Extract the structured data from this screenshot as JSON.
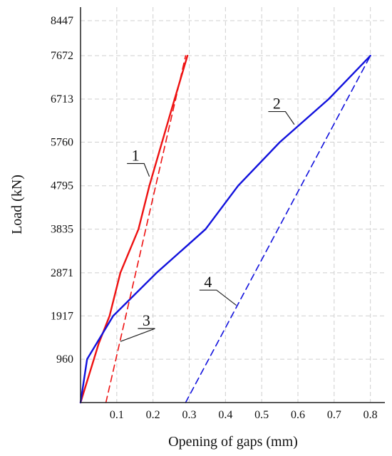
{
  "chart_data": {
    "type": "line",
    "title": "",
    "xlabel": "Opening of gaps (mm)",
    "ylabel": "Load (kN)",
    "xlim": [
      0,
      0.84
    ],
    "ylim": [
      0,
      8447
    ],
    "x_ticks": [
      0.1,
      0.2,
      0.3,
      0.4,
      0.5,
      0.6,
      0.7,
      0.8
    ],
    "x_tick_labels": [
      "0.1",
      "0.2",
      "0.3",
      "0.4",
      "0.5",
      "0.6",
      "0.7",
      "0.8"
    ],
    "y_ticks": [
      960,
      1917,
      2871,
      3835,
      4795,
      5760,
      6713,
      7672,
      8447
    ],
    "y_tick_labels": [
      "960",
      "1917",
      "2871",
      "3835",
      "4795",
      "5760",
      "6713",
      "7672",
      "8447"
    ],
    "grid": true,
    "legend": "none",
    "series": [
      {
        "label": "1",
        "color": "#ee1111",
        "dashed": false,
        "points": [
          [
            0,
            0
          ],
          [
            0.05,
            1300
          ],
          [
            0.08,
            1917
          ],
          [
            0.11,
            2871
          ],
          [
            0.16,
            3835
          ],
          [
            0.19,
            4795
          ],
          [
            0.25,
            6450
          ],
          [
            0.295,
            7672
          ]
        ]
      },
      {
        "label": "2",
        "color": "#1111dd",
        "dashed": false,
        "points": [
          [
            0,
            0
          ],
          [
            0.018,
            960
          ],
          [
            0.09,
            1917
          ],
          [
            0.21,
            2871
          ],
          [
            0.345,
            3835
          ],
          [
            0.435,
            4795
          ],
          [
            0.55,
            5760
          ],
          [
            0.685,
            6713
          ],
          [
            0.8,
            7672
          ]
        ]
      },
      {
        "label": "3",
        "color": "#ee1111",
        "dashed": true,
        "points": [
          [
            0.07,
            0
          ],
          [
            0.29,
            7672
          ]
        ]
      },
      {
        "label": "4",
        "color": "#1111dd",
        "dashed": true,
        "points": [
          [
            0.29,
            0
          ],
          [
            0.8,
            7672
          ]
        ]
      }
    ],
    "annotations": [
      {
        "text": "1",
        "series": 0,
        "at": [
          0.19,
          5000
        ],
        "label_at": [
          0.14,
          5350
        ]
      },
      {
        "text": "2",
        "series": 1,
        "at": [
          0.59,
          6150
        ],
        "label_at": [
          0.53,
          6500
        ]
      },
      {
        "text": "3",
        "series": 2,
        "at": [
          0.11,
          1350
        ],
        "label_at": [
          0.17,
          1700
        ]
      },
      {
        "text": "4",
        "series": 3,
        "at": [
          0.43,
          2150
        ],
        "label_at": [
          0.34,
          2550
        ]
      }
    ]
  }
}
